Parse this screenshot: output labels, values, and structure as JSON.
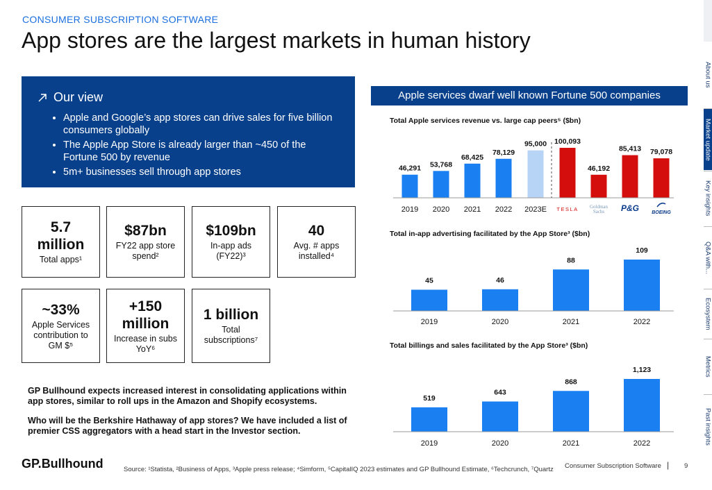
{
  "header": {
    "kicker": "CONSUMER SUBSCRIPTION SOFTWARE",
    "title": "App stores are the largest markets in human history"
  },
  "our_view": {
    "icon": "arrow-up-right-icon",
    "heading": "Our view",
    "bullets": [
      "Apple and Google’s app stores can drive sales for five billion consumers globally",
      "The Apple App Store is already larger than ~450 of the Fortune 500 by revenue",
      "5m+ businesses sell through app stores"
    ]
  },
  "stats": [
    {
      "big": "5.7 million",
      "small": "Total apps¹"
    },
    {
      "big": "$87bn",
      "small": "FY22 app store spend²"
    },
    {
      "big": "$109bn",
      "small": "In-app ads (FY22)³"
    },
    {
      "big": "40",
      "small": "Avg. # apps installed⁴"
    },
    {
      "big": "~33%",
      "small": "Apple Services contribution to GM $⁵"
    },
    {
      "big": "+150 million",
      "small": "Increase in subs YoY⁶"
    },
    {
      "big": "1 billion",
      "small": "Total subscriptions⁷"
    }
  ],
  "notes": [
    "GP Bullhound expects increased interest in consolidating applications within app stores, similar to roll ups in the Amazon and Shopify ecosystems.",
    "Who will be the Berkshire Hathaway of app stores? We have included a list of premier CSS aggregators with a head start in the Investor section."
  ],
  "footer": {
    "logo": "GP.Bullhound",
    "source": "Source: ¹Statista, ²Business of Apps, ³Apple press release; ⁴Simform, ⁵CapitalIQ 2023 estimates and GP Bullhound Estimate, ⁶Techcrunch, ⁷Quartz",
    "section": "Consumer Subscription Software",
    "separator": "|",
    "page": "9"
  },
  "banner": "Apple services dwarf well known Fortune 500 companies",
  "colors": {
    "navy": "#08408c",
    "blue": "#1a7ff0",
    "light_blue": "#b7d4f7",
    "red": "#d40d0d",
    "kicker": "#1a6fe0"
  },
  "chart_data": [
    {
      "type": "bar",
      "title": "Total Apple services revenue vs. large cap peers⁵ ($bn)",
      "categories": [
        "2019",
        "2020",
        "2021",
        "2022",
        "2023E",
        "TESLA",
        "Goldman Sachs",
        "P&G",
        "BOEING"
      ],
      "values": [
        46291,
        53768,
        68425,
        78129,
        95000,
        100093,
        46192,
        85413,
        79078
      ],
      "labels": [
        "46,291",
        "53,768",
        "68,425",
        "78,129",
        "95,000",
        "100,093",
        "46,192",
        "85,413",
        "79,078"
      ],
      "bar_colors": [
        "blue",
        "blue",
        "blue",
        "blue",
        "light_blue",
        "red",
        "red",
        "red",
        "red"
      ],
      "ylim": [
        0,
        100093
      ],
      "divider_after_index": 4
    },
    {
      "type": "bar",
      "title": "Total in-app advertising facilitated by the App Store³ ($bn)",
      "categories": [
        "2019",
        "2020",
        "2021",
        "2022"
      ],
      "values": [
        45,
        46,
        88,
        109
      ],
      "labels": [
        "45",
        "46",
        "88",
        "109"
      ],
      "ylim": [
        0,
        109
      ]
    },
    {
      "type": "bar",
      "title": "Total billings and sales facilitated by the App Store³ ($bn)",
      "categories": [
        "2019",
        "2020",
        "2021",
        "2022"
      ],
      "values": [
        519,
        643,
        868,
        1123
      ],
      "labels": [
        "519",
        "643",
        "868",
        "1,123"
      ],
      "ylim": [
        0,
        1123
      ]
    }
  ],
  "sidenav": [
    {
      "label": "About us",
      "active": false
    },
    {
      "label": "Market update",
      "active": true
    },
    {
      "label": "Key insights",
      "active": false
    },
    {
      "label": "Q&A with...",
      "active": false
    },
    {
      "label": "Ecosystem",
      "active": false
    },
    {
      "label": "Metrics",
      "active": false
    },
    {
      "label": "Past insights",
      "active": false
    }
  ]
}
